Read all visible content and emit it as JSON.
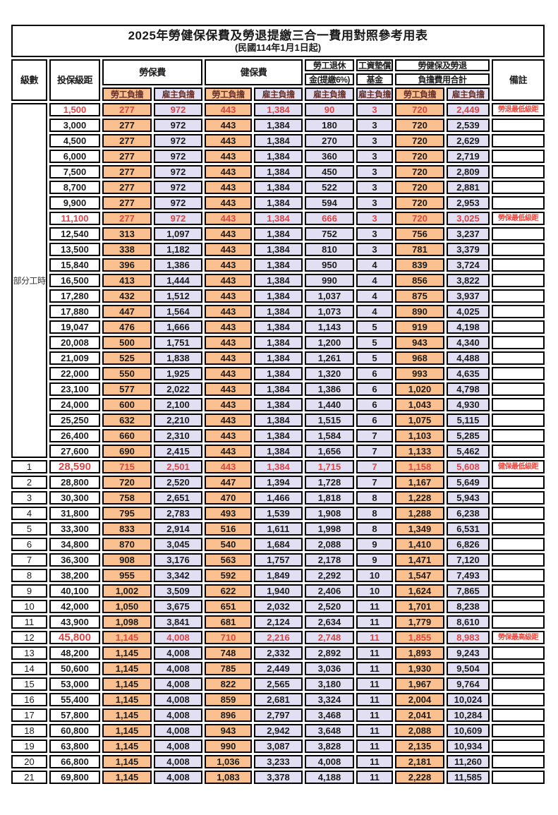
{
  "title": "2025年勞健保保費及勞退提繳三合一費用對照參考用表",
  "subtitle": "(民國114年1月1日起)",
  "columns": {
    "level": "級數",
    "bracket": "投保級距",
    "labor_insurance": "勞保費",
    "health_insurance": "健保費",
    "pension_line1": "勞工退休",
    "pension_line2": "金(提繳6%)",
    "wage_fund_line1": "工資墊償",
    "wage_fund_line2": "基金",
    "total_line1": "勞健保及勞退",
    "total_line2": "負擔費用合計",
    "remark": "備註",
    "employee": "勞工負擔",
    "employer": "雇主負擔"
  },
  "part_time_label": "部分工時",
  "colors": {
    "employee_bg": "#FAC090",
    "employer_bg": "#E1DFF1",
    "highlight_value_red": "#DE4545",
    "remark_red": "#F2463B"
  },
  "rows": [
    {
      "level": "",
      "bracket": "1,500",
      "li_emp": "277",
      "li_er": "972",
      "hi_emp": "443",
      "hi_er": "1,384",
      "pension": "90",
      "fund": "3",
      "tot_emp": "720",
      "tot_er": "2,449",
      "remark": "勞退最低級距",
      "red": true,
      "em": false
    },
    {
      "level": "",
      "bracket": "3,000",
      "li_emp": "277",
      "li_er": "972",
      "hi_emp": "443",
      "hi_er": "1,384",
      "pension": "180",
      "fund": "3",
      "tot_emp": "720",
      "tot_er": "2,539",
      "remark": "",
      "red": false,
      "em": false
    },
    {
      "level": "",
      "bracket": "4,500",
      "li_emp": "277",
      "li_er": "972",
      "hi_emp": "443",
      "hi_er": "1,384",
      "pension": "270",
      "fund": "3",
      "tot_emp": "720",
      "tot_er": "2,629",
      "remark": "",
      "red": false,
      "em": false
    },
    {
      "level": "",
      "bracket": "6,000",
      "li_emp": "277",
      "li_er": "972",
      "hi_emp": "443",
      "hi_er": "1,384",
      "pension": "360",
      "fund": "3",
      "tot_emp": "720",
      "tot_er": "2,719",
      "remark": "",
      "red": false,
      "em": false
    },
    {
      "level": "",
      "bracket": "7,500",
      "li_emp": "277",
      "li_er": "972",
      "hi_emp": "443",
      "hi_er": "1,384",
      "pension": "450",
      "fund": "3",
      "tot_emp": "720",
      "tot_er": "2,809",
      "remark": "",
      "red": false,
      "em": false
    },
    {
      "level": "",
      "bracket": "8,700",
      "li_emp": "277",
      "li_er": "972",
      "hi_emp": "443",
      "hi_er": "1,384",
      "pension": "522",
      "fund": "3",
      "tot_emp": "720",
      "tot_er": "2,881",
      "remark": "",
      "red": false,
      "em": false
    },
    {
      "level": "",
      "bracket": "9,900",
      "li_emp": "277",
      "li_er": "972",
      "hi_emp": "443",
      "hi_er": "1,384",
      "pension": "594",
      "fund": "3",
      "tot_emp": "720",
      "tot_er": "2,953",
      "remark": "",
      "red": false,
      "em": false
    },
    {
      "level": "",
      "bracket": "11,100",
      "li_emp": "277",
      "li_er": "972",
      "hi_emp": "443",
      "hi_er": "1,384",
      "pension": "666",
      "fund": "3",
      "tot_emp": "720",
      "tot_er": "3,025",
      "remark": "勞保最低級距",
      "red": true,
      "em": false
    },
    {
      "level": "",
      "bracket": "12,540",
      "li_emp": "313",
      "li_er": "1,097",
      "hi_emp": "443",
      "hi_er": "1,384",
      "pension": "752",
      "fund": "3",
      "tot_emp": "756",
      "tot_er": "3,237",
      "remark": "",
      "red": false,
      "em": false
    },
    {
      "level": "",
      "bracket": "13,500",
      "li_emp": "338",
      "li_er": "1,182",
      "hi_emp": "443",
      "hi_er": "1,384",
      "pension": "810",
      "fund": "3",
      "tot_emp": "781",
      "tot_er": "3,379",
      "remark": "",
      "red": false,
      "em": false
    },
    {
      "level": "",
      "bracket": "15,840",
      "li_emp": "396",
      "li_er": "1,386",
      "hi_emp": "443",
      "hi_er": "1,384",
      "pension": "950",
      "fund": "4",
      "tot_emp": "839",
      "tot_er": "3,724",
      "remark": "",
      "red": false,
      "em": false
    },
    {
      "level": "",
      "bracket": "16,500",
      "li_emp": "413",
      "li_er": "1,444",
      "hi_emp": "443",
      "hi_er": "1,384",
      "pension": "990",
      "fund": "4",
      "tot_emp": "856",
      "tot_er": "3,822",
      "remark": "",
      "red": false,
      "em": false
    },
    {
      "level": "",
      "bracket": "17,280",
      "li_emp": "432",
      "li_er": "1,512",
      "hi_emp": "443",
      "hi_er": "1,384",
      "pension": "1,037",
      "fund": "4",
      "tot_emp": "875",
      "tot_er": "3,937",
      "remark": "",
      "red": false,
      "em": false
    },
    {
      "level": "",
      "bracket": "17,880",
      "li_emp": "447",
      "li_er": "1,564",
      "hi_emp": "443",
      "hi_er": "1,384",
      "pension": "1,073",
      "fund": "4",
      "tot_emp": "890",
      "tot_er": "4,025",
      "remark": "",
      "red": false,
      "em": false
    },
    {
      "level": "",
      "bracket": "19,047",
      "li_emp": "476",
      "li_er": "1,666",
      "hi_emp": "443",
      "hi_er": "1,384",
      "pension": "1,143",
      "fund": "5",
      "tot_emp": "919",
      "tot_er": "4,198",
      "remark": "",
      "red": false,
      "em": false
    },
    {
      "level": "",
      "bracket": "20,008",
      "li_emp": "500",
      "li_er": "1,751",
      "hi_emp": "443",
      "hi_er": "1,384",
      "pension": "1,200",
      "fund": "5",
      "tot_emp": "943",
      "tot_er": "4,340",
      "remark": "",
      "red": false,
      "em": false
    },
    {
      "level": "",
      "bracket": "21,009",
      "li_emp": "525",
      "li_er": "1,838",
      "hi_emp": "443",
      "hi_er": "1,384",
      "pension": "1,261",
      "fund": "5",
      "tot_emp": "968",
      "tot_er": "4,488",
      "remark": "",
      "red": false,
      "em": false
    },
    {
      "level": "",
      "bracket": "22,000",
      "li_emp": "550",
      "li_er": "1,925",
      "hi_emp": "443",
      "hi_er": "1,384",
      "pension": "1,320",
      "fund": "6",
      "tot_emp": "993",
      "tot_er": "4,635",
      "remark": "",
      "red": false,
      "em": false
    },
    {
      "level": "",
      "bracket": "23,100",
      "li_emp": "577",
      "li_er": "2,022",
      "hi_emp": "443",
      "hi_er": "1,384",
      "pension": "1,386",
      "fund": "6",
      "tot_emp": "1,020",
      "tot_er": "4,798",
      "remark": "",
      "red": false,
      "em": false
    },
    {
      "level": "",
      "bracket": "24,000",
      "li_emp": "600",
      "li_er": "2,100",
      "hi_emp": "443",
      "hi_er": "1,384",
      "pension": "1,440",
      "fund": "6",
      "tot_emp": "1,043",
      "tot_er": "4,930",
      "remark": "",
      "red": false,
      "em": false
    },
    {
      "level": "",
      "bracket": "25,250",
      "li_emp": "632",
      "li_er": "2,210",
      "hi_emp": "443",
      "hi_er": "1,384",
      "pension": "1,515",
      "fund": "6",
      "tot_emp": "1,075",
      "tot_er": "5,115",
      "remark": "",
      "red": false,
      "em": false
    },
    {
      "level": "",
      "bracket": "26,400",
      "li_emp": "660",
      "li_er": "2,310",
      "hi_emp": "443",
      "hi_er": "1,384",
      "pension": "1,584",
      "fund": "7",
      "tot_emp": "1,103",
      "tot_er": "5,285",
      "remark": "",
      "red": false,
      "em": false
    },
    {
      "level": "",
      "bracket": "27,600",
      "li_emp": "690",
      "li_er": "2,415",
      "hi_emp": "443",
      "hi_er": "1,384",
      "pension": "1,656",
      "fund": "7",
      "tot_emp": "1,133",
      "tot_er": "5,462",
      "remark": "",
      "red": false,
      "em": false
    },
    {
      "level": "1",
      "bracket": "28,590",
      "li_emp": "715",
      "li_er": "2,501",
      "hi_emp": "443",
      "hi_er": "1,384",
      "pension": "1,715",
      "fund": "7",
      "tot_emp": "1,158",
      "tot_er": "5,608",
      "remark": "健保最低級距",
      "red": true,
      "em": true
    },
    {
      "level": "2",
      "bracket": "28,800",
      "li_emp": "720",
      "li_er": "2,520",
      "hi_emp": "447",
      "hi_er": "1,394",
      "pension": "1,728",
      "fund": "7",
      "tot_emp": "1,167",
      "tot_er": "5,649",
      "remark": "",
      "red": false,
      "em": false
    },
    {
      "level": "3",
      "bracket": "30,300",
      "li_emp": "758",
      "li_er": "2,651",
      "hi_emp": "470",
      "hi_er": "1,466",
      "pension": "1,818",
      "fund": "8",
      "tot_emp": "1,228",
      "tot_er": "5,943",
      "remark": "",
      "red": false,
      "em": false
    },
    {
      "level": "4",
      "bracket": "31,800",
      "li_emp": "795",
      "li_er": "2,783",
      "hi_emp": "493",
      "hi_er": "1,539",
      "pension": "1,908",
      "fund": "8",
      "tot_emp": "1,288",
      "tot_er": "6,238",
      "remark": "",
      "red": false,
      "em": false
    },
    {
      "level": "5",
      "bracket": "33,300",
      "li_emp": "833",
      "li_er": "2,914",
      "hi_emp": "516",
      "hi_er": "1,611",
      "pension": "1,998",
      "fund": "8",
      "tot_emp": "1,349",
      "tot_er": "6,531",
      "remark": "",
      "red": false,
      "em": false
    },
    {
      "level": "6",
      "bracket": "34,800",
      "li_emp": "870",
      "li_er": "3,045",
      "hi_emp": "540",
      "hi_er": "1,684",
      "pension": "2,088",
      "fund": "9",
      "tot_emp": "1,410",
      "tot_er": "6,826",
      "remark": "",
      "red": false,
      "em": false
    },
    {
      "level": "7",
      "bracket": "36,300",
      "li_emp": "908",
      "li_er": "3,176",
      "hi_emp": "563",
      "hi_er": "1,757",
      "pension": "2,178",
      "fund": "9",
      "tot_emp": "1,471",
      "tot_er": "7,120",
      "remark": "",
      "red": false,
      "em": false
    },
    {
      "level": "8",
      "bracket": "38,200",
      "li_emp": "955",
      "li_er": "3,342",
      "hi_emp": "592",
      "hi_er": "1,849",
      "pension": "2,292",
      "fund": "10",
      "tot_emp": "1,547",
      "tot_er": "7,493",
      "remark": "",
      "red": false,
      "em": false
    },
    {
      "level": "9",
      "bracket": "40,100",
      "li_emp": "1,002",
      "li_er": "3,509",
      "hi_emp": "622",
      "hi_er": "1,940",
      "pension": "2,406",
      "fund": "10",
      "tot_emp": "1,624",
      "tot_er": "7,865",
      "remark": "",
      "red": false,
      "em": false
    },
    {
      "level": "10",
      "bracket": "42,000",
      "li_emp": "1,050",
      "li_er": "3,675",
      "hi_emp": "651",
      "hi_er": "2,032",
      "pension": "2,520",
      "fund": "11",
      "tot_emp": "1,701",
      "tot_er": "8,238",
      "remark": "",
      "red": false,
      "em": false
    },
    {
      "level": "11",
      "bracket": "43,900",
      "li_emp": "1,098",
      "li_er": "3,841",
      "hi_emp": "681",
      "hi_er": "2,124",
      "pension": "2,634",
      "fund": "11",
      "tot_emp": "1,779",
      "tot_er": "8,610",
      "remark": "",
      "red": false,
      "em": false
    },
    {
      "level": "12",
      "bracket": "45,800",
      "li_emp": "1,145",
      "li_er": "4,008",
      "hi_emp": "710",
      "hi_er": "2,216",
      "pension": "2,748",
      "fund": "11",
      "tot_emp": "1,855",
      "tot_er": "8,983",
      "remark": "勞保最高級距",
      "red": true,
      "em": true
    },
    {
      "level": "13",
      "bracket": "48,200",
      "li_emp": "1,145",
      "li_er": "4,008",
      "hi_emp": "748",
      "hi_er": "2,332",
      "pension": "2,892",
      "fund": "11",
      "tot_emp": "1,893",
      "tot_er": "9,243",
      "remark": "",
      "red": false,
      "em": false
    },
    {
      "level": "14",
      "bracket": "50,600",
      "li_emp": "1,145",
      "li_er": "4,008",
      "hi_emp": "785",
      "hi_er": "2,449",
      "pension": "3,036",
      "fund": "11",
      "tot_emp": "1,930",
      "tot_er": "9,504",
      "remark": "",
      "red": false,
      "em": false
    },
    {
      "level": "15",
      "bracket": "53,000",
      "li_emp": "1,145",
      "li_er": "4,008",
      "hi_emp": "822",
      "hi_er": "2,565",
      "pension": "3,180",
      "fund": "11",
      "tot_emp": "1,967",
      "tot_er": "9,764",
      "remark": "",
      "red": false,
      "em": false
    },
    {
      "level": "16",
      "bracket": "55,400",
      "li_emp": "1,145",
      "li_er": "4,008",
      "hi_emp": "859",
      "hi_er": "2,681",
      "pension": "3,324",
      "fund": "11",
      "tot_emp": "2,004",
      "tot_er": "10,024",
      "remark": "",
      "red": false,
      "em": false
    },
    {
      "level": "17",
      "bracket": "57,800",
      "li_emp": "1,145",
      "li_er": "4,008",
      "hi_emp": "896",
      "hi_er": "2,797",
      "pension": "3,468",
      "fund": "11",
      "tot_emp": "2,041",
      "tot_er": "10,284",
      "remark": "",
      "red": false,
      "em": false
    },
    {
      "level": "18",
      "bracket": "60,800",
      "li_emp": "1,145",
      "li_er": "4,008",
      "hi_emp": "943",
      "hi_er": "2,942",
      "pension": "3,648",
      "fund": "11",
      "tot_emp": "2,088",
      "tot_er": "10,609",
      "remark": "",
      "red": false,
      "em": false
    },
    {
      "level": "19",
      "bracket": "63,800",
      "li_emp": "1,145",
      "li_er": "4,008",
      "hi_emp": "990",
      "hi_er": "3,087",
      "pension": "3,828",
      "fund": "11",
      "tot_emp": "2,135",
      "tot_er": "10,934",
      "remark": "",
      "red": false,
      "em": false
    },
    {
      "level": "20",
      "bracket": "66,800",
      "li_emp": "1,145",
      "li_er": "4,008",
      "hi_emp": "1,036",
      "hi_er": "3,233",
      "pension": "4,008",
      "fund": "11",
      "tot_emp": "2,181",
      "tot_er": "11,260",
      "remark": "",
      "red": false,
      "em": false
    },
    {
      "level": "21",
      "bracket": "69,800",
      "li_emp": "1,145",
      "li_er": "4,008",
      "hi_emp": "1,083",
      "hi_er": "3,378",
      "pension": "4,188",
      "fund": "11",
      "tot_emp": "2,228",
      "tot_er": "11,585",
      "remark": "",
      "red": false,
      "em": false
    }
  ]
}
